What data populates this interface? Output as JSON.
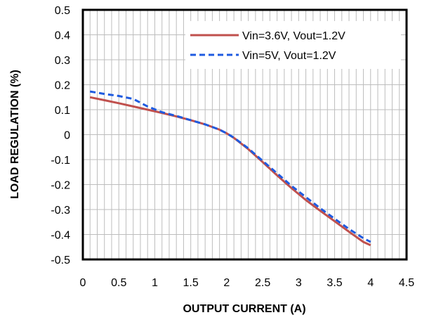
{
  "chart_data": {
    "type": "line",
    "xlabel": "OUTPUT CURRENT (A)",
    "ylabel": "LOAD REGULATION (%)",
    "xlim": [
      0,
      4.5
    ],
    "ylim": [
      -0.5,
      0.5
    ],
    "x_ticks": [
      "0",
      "0.5",
      "1",
      "1.5",
      "2",
      "2.5",
      "3",
      "3.5",
      "4",
      "4.5"
    ],
    "y_ticks": [
      "0.5",
      "0.4",
      "0.3",
      "0.2",
      "0.1",
      "0",
      "-0.1",
      "-0.2",
      "-0.3",
      "-0.4",
      "-0.5"
    ],
    "x_tick_values": [
      0,
      0.5,
      1,
      1.5,
      2,
      2.5,
      3,
      3.5,
      4,
      4.5
    ],
    "y_tick_values": [
      0.5,
      0.4,
      0.3,
      0.2,
      0.1,
      0,
      -0.1,
      -0.2,
      -0.3,
      -0.4,
      -0.5
    ],
    "minor_x_step": 0.1,
    "grid": true,
    "legend_position": "top-right",
    "series": [
      {
        "name": "Vin=3.6V, Vout=1.2V",
        "color": "#C0504D",
        "style": "solid",
        "x": [
          0.1,
          0.3,
          0.5,
          0.7,
          0.9,
          1.1,
          1.3,
          1.5,
          1.7,
          1.9,
          2.0,
          2.1,
          2.3,
          2.5,
          2.7,
          2.9,
          3.1,
          3.3,
          3.5,
          3.7,
          3.9,
          4.0
        ],
        "y": [
          0.15,
          0.138,
          0.126,
          0.113,
          0.1,
          0.087,
          0.073,
          0.058,
          0.041,
          0.02,
          0.005,
          -0.013,
          -0.058,
          -0.11,
          -0.163,
          -0.214,
          -0.262,
          -0.305,
          -0.347,
          -0.389,
          -0.43,
          -0.443
        ]
      },
      {
        "name": "Vin=5V, Vout=1.2V",
        "color": "#1F5BE0",
        "style": "dashed",
        "x": [
          0.1,
          0.3,
          0.5,
          0.7,
          0.9,
          1.1,
          1.3,
          1.5,
          1.7,
          1.9,
          2.0,
          2.1,
          2.3,
          2.5,
          2.7,
          2.9,
          3.1,
          3.3,
          3.5,
          3.7,
          3.9,
          4.0
        ],
        "y": [
          0.173,
          0.163,
          0.155,
          0.143,
          0.113,
          0.09,
          0.075,
          0.058,
          0.041,
          0.02,
          0.005,
          -0.012,
          -0.055,
          -0.105,
          -0.155,
          -0.205,
          -0.25,
          -0.295,
          -0.337,
          -0.378,
          -0.415,
          -0.43
        ]
      }
    ]
  }
}
